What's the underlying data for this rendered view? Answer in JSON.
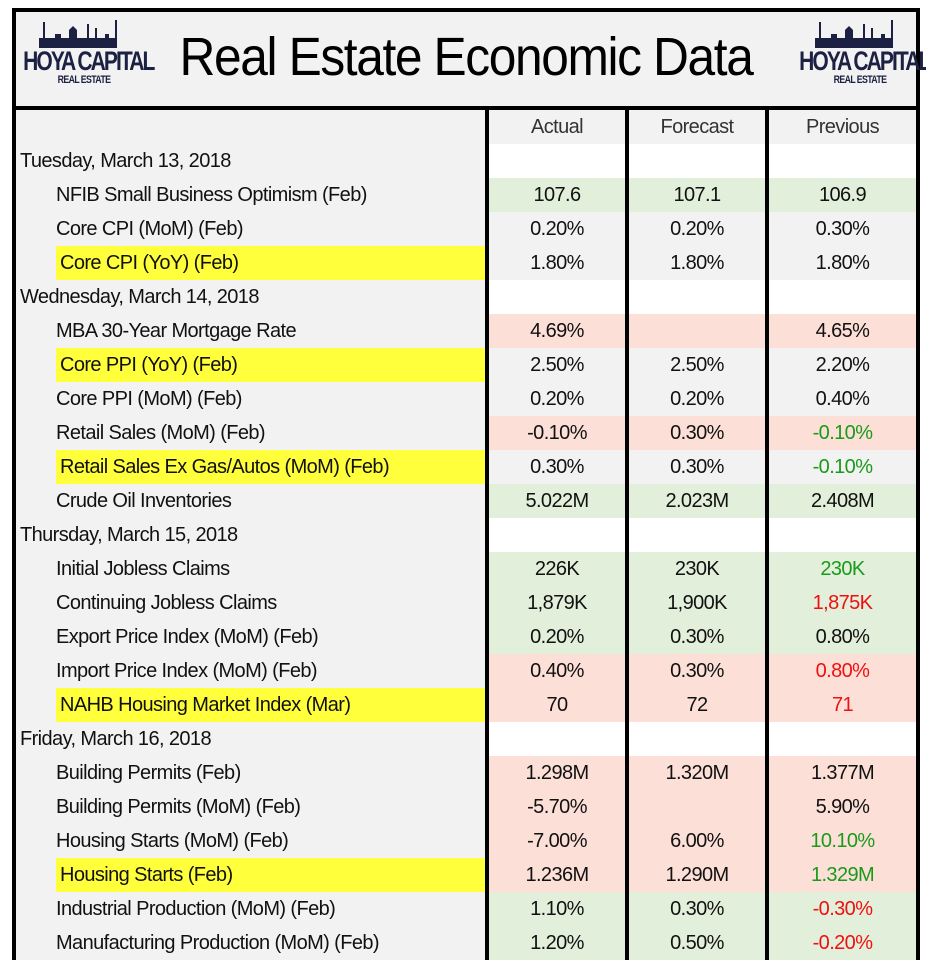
{
  "header": {
    "title": "Real Estate Economic Data",
    "logo_text": "HOYA CAPITAL",
    "logo_subtext": "REAL ESTATE",
    "logo_color": "#1c2143"
  },
  "columns": [
    "Actual",
    "Forecast",
    "Previous"
  ],
  "colors": {
    "green_bg": "#e2efda",
    "red_bg": "#fce0d8",
    "gray_bg": "#f2f2f2",
    "highlight": "#ffff3b",
    "positive_text": "#1a9a1a",
    "negative_text": "#f01010"
  },
  "rows": [
    {
      "type": "date",
      "label": "Tuesday, March 13, 2018"
    },
    {
      "type": "item",
      "label": "NFIB Small Business Optimism (Feb)",
      "actual": "107.6",
      "forecast": "107.1",
      "previous": "106.9",
      "bg": "green",
      "highlight": false,
      "previous_color": "black"
    },
    {
      "type": "item",
      "label": "Core CPI (MoM) (Feb)",
      "actual": "0.20%",
      "forecast": "0.20%",
      "previous": "0.30%",
      "bg": "gray",
      "highlight": false,
      "previous_color": "black"
    },
    {
      "type": "item",
      "label": "Core CPI (YoY) (Feb)",
      "actual": "1.80%",
      "forecast": "1.80%",
      "previous": "1.80%",
      "bg": "gray",
      "highlight": true,
      "previous_color": "black"
    },
    {
      "type": "date",
      "label": "Wednesday, March 14, 2018"
    },
    {
      "type": "item",
      "label": "MBA 30-Year Mortgage Rate",
      "actual": "4.69%",
      "forecast": "",
      "previous": "4.65%",
      "bg": "red",
      "highlight": false,
      "previous_color": "black"
    },
    {
      "type": "item",
      "label": "Core PPI (YoY) (Feb)",
      "actual": "2.50%",
      "forecast": "2.50%",
      "previous": "2.20%",
      "bg": "gray",
      "highlight": true,
      "previous_color": "black"
    },
    {
      "type": "item",
      "label": "Core PPI (MoM) (Feb)",
      "actual": "0.20%",
      "forecast": "0.20%",
      "previous": "0.40%",
      "bg": "gray",
      "highlight": false,
      "previous_color": "black"
    },
    {
      "type": "item",
      "label": "Retail Sales (MoM) (Feb)",
      "actual": "-0.10%",
      "forecast": "0.30%",
      "previous": "-0.10%",
      "bg": "red",
      "highlight": false,
      "previous_color": "green"
    },
    {
      "type": "item",
      "label": "Retail Sales Ex Gas/Autos (MoM) (Feb)",
      "actual": "0.30%",
      "forecast": "0.30%",
      "previous": "-0.10%",
      "bg": "gray",
      "highlight": true,
      "previous_color": "green"
    },
    {
      "type": "item",
      "label": "Crude Oil Inventories",
      "actual": "5.022M",
      "forecast": "2.023M",
      "previous": "2.408M",
      "bg": "green",
      "highlight": false,
      "previous_color": "black"
    },
    {
      "type": "date",
      "label": "Thursday, March 15, 2018"
    },
    {
      "type": "item",
      "label": "Initial Jobless Claims",
      "actual": "226K",
      "forecast": "230K",
      "previous": "230K",
      "bg": "green",
      "highlight": false,
      "previous_color": "green"
    },
    {
      "type": "item",
      "label": "Continuing Jobless Claims",
      "actual": "1,879K",
      "forecast": "1,900K",
      "previous": "1,875K",
      "bg": "green",
      "highlight": false,
      "previous_color": "red"
    },
    {
      "type": "item",
      "label": "Export Price Index (MoM) (Feb)",
      "actual": "0.20%",
      "forecast": "0.30%",
      "previous": "0.80%",
      "bg": "green",
      "highlight": false,
      "previous_color": "black"
    },
    {
      "type": "item",
      "label": "Import Price Index (MoM) (Feb)",
      "actual": "0.40%",
      "forecast": "0.30%",
      "previous": "0.80%",
      "bg": "red",
      "highlight": false,
      "previous_color": "red"
    },
    {
      "type": "item",
      "label": "NAHB Housing Market Index (Mar)",
      "actual": "70",
      "forecast": "72",
      "previous": "71",
      "bg": "red",
      "highlight": true,
      "previous_color": "red"
    },
    {
      "type": "date",
      "label": "Friday, March 16, 2018"
    },
    {
      "type": "item",
      "label": "Building Permits (Feb)",
      "actual": "1.298M",
      "forecast": "1.320M",
      "previous": "1.377M",
      "bg": "red",
      "highlight": false,
      "previous_color": "black"
    },
    {
      "type": "item",
      "label": "Building Permits (MoM) (Feb)",
      "actual": "-5.70%",
      "forecast": "",
      "previous": "5.90%",
      "bg": "red",
      "highlight": false,
      "previous_color": "black"
    },
    {
      "type": "item",
      "label": "Housing Starts (MoM) (Feb)",
      "actual": "-7.00%",
      "forecast": "6.00%",
      "previous": "10.10%",
      "bg": "red",
      "highlight": false,
      "previous_color": "green"
    },
    {
      "type": "item",
      "label": "Housing Starts (Feb)",
      "actual": "1.236M",
      "forecast": "1.290M",
      "previous": "1.329M",
      "bg": "red",
      "highlight": true,
      "previous_color": "green"
    },
    {
      "type": "item",
      "label": "Industrial Production (MoM) (Feb)",
      "actual": "1.10%",
      "forecast": "0.30%",
      "previous": "-0.30%",
      "bg": "green",
      "highlight": false,
      "previous_color": "red"
    },
    {
      "type": "item",
      "label": "Manufacturing Production (MoM) (Feb)",
      "actual": "1.20%",
      "forecast": "0.50%",
      "previous": "-0.20%",
      "bg": "green",
      "highlight": false,
      "previous_color": "red"
    }
  ]
}
